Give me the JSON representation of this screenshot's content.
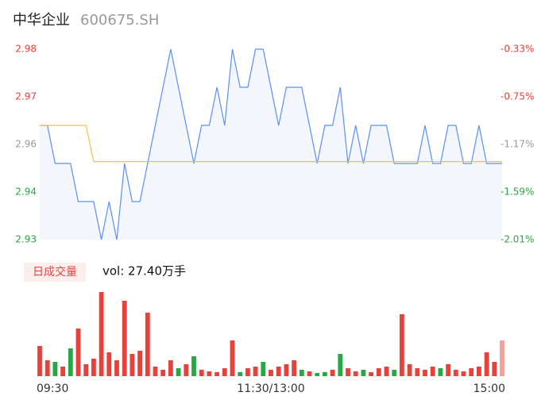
{
  "header": {
    "name": "中华企业",
    "code": "600675.SH"
  },
  "chart_data": [
    {
      "type": "line",
      "xlim": [
        0,
        240
      ],
      "xticks": [
        {
          "value": 0,
          "label": "09:30"
        },
        {
          "value": 120,
          "label": "11:30/13:00"
        },
        {
          "value": 240,
          "label": "15:00"
        }
      ],
      "ylim": [
        2.93,
        2.98
      ],
      "yticks": [
        {
          "value": 2.98,
          "label": "2.98"
        },
        {
          "value": 2.9675,
          "label": "2.97"
        },
        {
          "value": 2.955,
          "label": "2.96"
        },
        {
          "value": 2.9425,
          "label": "2.94"
        },
        {
          "value": 2.93,
          "label": "2.93"
        }
      ],
      "y2lim": [
        -2.01,
        -0.33
      ],
      "y2ticks": [
        {
          "value": -0.33,
          "label": "-0.33%"
        },
        {
          "value": -0.75,
          "label": "-0.75%"
        },
        {
          "value": -1.17,
          "label": "-1.17%"
        },
        {
          "value": -1.59,
          "label": "-1.59%"
        },
        {
          "value": -2.01,
          "label": "-2.01%"
        }
      ],
      "tick_colors": [
        "#e8413b",
        "#e8413b",
        "#999999",
        "#27a844",
        "#27a844"
      ],
      "area_color": "#f3f6fc",
      "x": [
        0,
        4,
        8,
        12,
        16,
        20,
        24,
        28,
        32,
        36,
        40,
        44,
        48,
        52,
        56,
        60,
        64,
        68,
        72,
        76,
        80,
        84,
        88,
        92,
        96,
        100,
        104,
        108,
        112,
        116,
        120,
        124,
        128,
        132,
        136,
        140,
        144,
        148,
        152,
        156,
        160,
        164,
        168,
        172,
        176,
        180,
        184,
        188,
        192,
        196,
        200,
        204,
        208,
        212,
        216,
        220,
        224,
        228,
        232,
        236,
        240
      ],
      "series": [
        {
          "name": "price",
          "color": "#5b8ff9",
          "values": [
            2.96,
            2.96,
            2.95,
            2.95,
            2.95,
            2.94,
            2.94,
            2.94,
            2.93,
            2.94,
            2.93,
            2.95,
            2.94,
            2.94,
            2.95,
            2.96,
            2.97,
            2.98,
            2.97,
            2.96,
            2.95,
            2.96,
            2.96,
            2.97,
            2.96,
            2.98,
            2.97,
            2.97,
            2.98,
            2.98,
            2.97,
            2.96,
            2.97,
            2.97,
            2.97,
            2.96,
            2.95,
            2.96,
            2.96,
            2.97,
            2.95,
            2.96,
            2.95,
            2.96,
            2.96,
            2.96,
            2.95,
            2.95,
            2.95,
            2.95,
            2.96,
            2.95,
            2.95,
            2.96,
            2.96,
            2.95,
            2.95,
            2.96,
            2.95,
            2.95,
            2.95
          ]
        },
        {
          "name": "avg",
          "color": "#f5c04a",
          "values": [
            2.96,
            2.96,
            2.96,
            2.96,
            2.96,
            2.96,
            2.96,
            2.9505,
            2.9505,
            2.9505,
            2.9505,
            2.9505,
            2.9505,
            2.9505,
            2.9505,
            2.9505,
            2.9505,
            2.9505,
            2.9505,
            2.9505,
            2.9505,
            2.9505,
            2.9505,
            2.9505,
            2.9505,
            2.9505,
            2.9505,
            2.9505,
            2.9505,
            2.9505,
            2.9505,
            2.9505,
            2.9505,
            2.9505,
            2.9505,
            2.9505,
            2.9505,
            2.9505,
            2.9505,
            2.9505,
            2.9505,
            2.9505,
            2.9505,
            2.9505,
            2.9505,
            2.9505,
            2.9505,
            2.9505,
            2.9505,
            2.9505,
            2.9505,
            2.9505,
            2.9505,
            2.9505,
            2.9505,
            2.9505,
            2.9505,
            2.9505,
            2.9505,
            2.9505,
            2.9505
          ]
        }
      ]
    },
    {
      "type": "bar",
      "legend": "日成交量",
      "summary": "vol: 27.40万手",
      "ylim": [
        0,
        106
      ],
      "values": [
        38,
        20,
        18,
        12,
        35,
        60,
        15,
        22,
        106,
        30,
        20,
        95,
        28,
        32,
        80,
        12,
        8,
        20,
        10,
        15,
        25,
        8,
        6,
        5,
        10,
        45,
        5,
        10,
        12,
        18,
        8,
        12,
        15,
        20,
        8,
        6,
        4,
        5,
        8,
        28,
        10,
        6,
        8,
        5,
        10,
        12,
        8,
        78,
        15,
        10,
        8,
        12,
        10,
        15,
        8,
        6,
        10,
        12,
        30,
        18,
        45
      ],
      "colors": [
        "#e8413b",
        "#e8413b",
        "#27a844",
        "#e8413b",
        "#27a844",
        "#e8413b",
        "#e8413b",
        "#e8413b",
        "#e8413b",
        "#e8413b",
        "#e8413b",
        "#e8413b",
        "#e8413b",
        "#e8413b",
        "#e8413b",
        "#e8413b",
        "#e8413b",
        "#e8413b",
        "#27a844",
        "#e8413b",
        "#27a844",
        "#e8413b",
        "#e8413b",
        "#e8413b",
        "#e8413b",
        "#e8413b",
        "#27a844",
        "#e8413b",
        "#e8413b",
        "#27a844",
        "#e8413b",
        "#e8413b",
        "#e8413b",
        "#e8413b",
        "#27a844",
        "#e8413b",
        "#27a844",
        "#27a844",
        "#e8413b",
        "#27a844",
        "#e8413b",
        "#e8413b",
        "#27a844",
        "#e8413b",
        "#e8413b",
        "#e8413b",
        "#27a844",
        "#e8413b",
        "#e8413b",
        "#e8413b",
        "#e8413b",
        "#e8413b",
        "#27a844",
        "#e8413b",
        "#e8413b",
        "#e8413b",
        "#e8413b",
        "#e8413b",
        "#e8413b",
        "#e8413b",
        "#f4a09c"
      ]
    }
  ]
}
